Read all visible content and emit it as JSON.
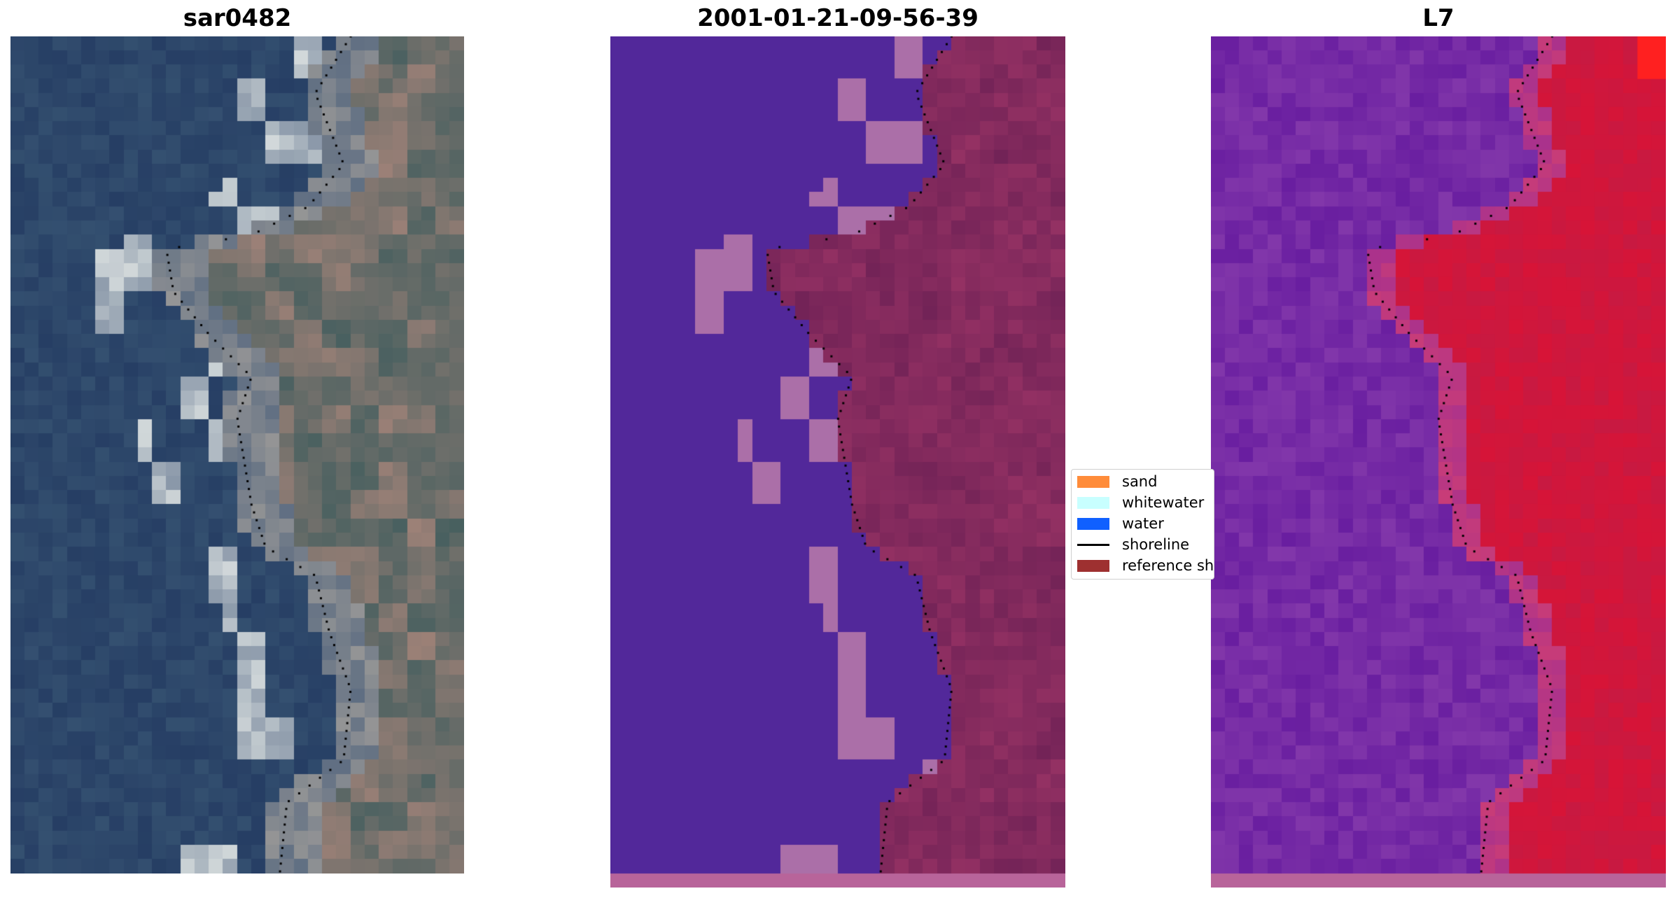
{
  "panels": [
    {
      "title": "sar0482",
      "kind": "rgb-satellite"
    },
    {
      "title": "2001-01-21-09-56-39",
      "kind": "classified"
    },
    {
      "title": "L7",
      "kind": "mndwi"
    }
  ],
  "legend": {
    "items": [
      {
        "label": "sand",
        "type": "patch",
        "color": "#ff8c3a"
      },
      {
        "label": "whitewater",
        "type": "patch",
        "color": "#c8ffff"
      },
      {
        "label": "water",
        "type": "patch",
        "color": "#1060ff"
      },
      {
        "label": "shoreline",
        "type": "line",
        "color": "#000000"
      },
      {
        "label": "reference shoreline",
        "type": "patch",
        "color": "#9e3030"
      }
    ]
  },
  "colors": {
    "ocean": "#2d4a6e",
    "classified_water": "#52289a",
    "classified_land": "#7a2a5e",
    "classified_light": "#ab6fa8",
    "mndwi_water": "#7a2aa8",
    "mndwi_land": "#cc1240"
  }
}
